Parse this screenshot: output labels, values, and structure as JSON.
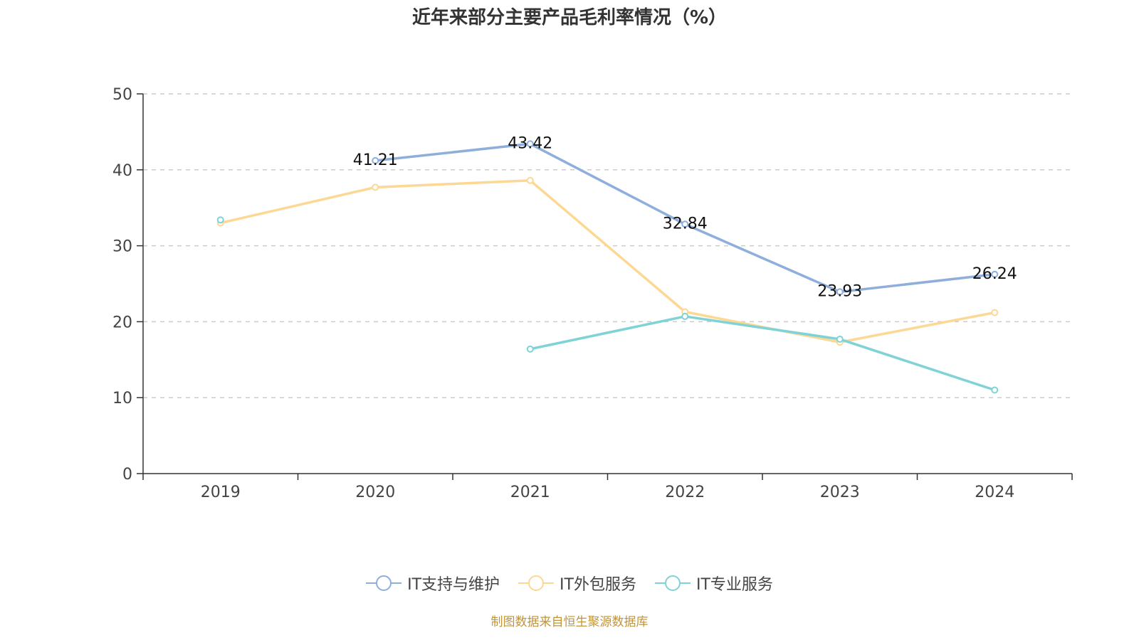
{
  "chart_data": {
    "type": "line",
    "title": "近年来部分主要产品毛利率情况（%）",
    "xlabel": "",
    "ylabel": "",
    "categories": [
      "2019",
      "2020",
      "2021",
      "2022",
      "2023",
      "2024"
    ],
    "ylim": [
      0,
      50
    ],
    "yticks": [
      0,
      10,
      20,
      30,
      40,
      50
    ],
    "grid": true,
    "legend_position": "bottom",
    "series": [
      {
        "name": "IT支持与维护",
        "color": "#8eaedc",
        "values": [
          null,
          41.21,
          43.42,
          32.84,
          23.93,
          26.24
        ],
        "show_labels": true
      },
      {
        "name": "IT外包服务",
        "color": "#fdd894",
        "values": [
          33.0,
          37.7,
          38.6,
          21.3,
          17.3,
          21.2
        ],
        "show_labels": false
      },
      {
        "name": "IT专业服务",
        "color": "#7fd3d6",
        "values": [
          33.4,
          null,
          16.4,
          20.7,
          17.7,
          11.0
        ],
        "show_labels": false
      }
    ]
  },
  "source": "制图数据来自恒生聚源数据库"
}
